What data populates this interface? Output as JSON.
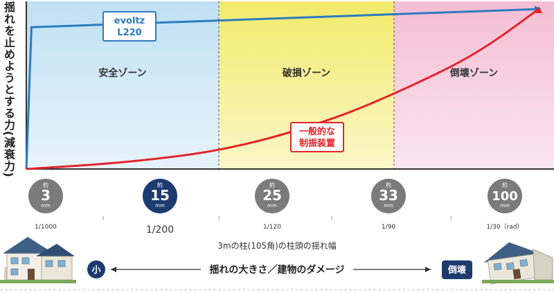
{
  "chart_data": {
    "type": "line",
    "ylabel": "揺れを止めようとする力(減衰力)",
    "zones": [
      {
        "label": "安全ゾーン",
        "color": "#cfe6f3"
      },
      {
        "label": "破損ゾーン",
        "color": "#f6ef8c"
      },
      {
        "label": "倒壊ゾーン",
        "color": "#f6cfdf"
      }
    ],
    "series": [
      {
        "name": "evoltz L220",
        "label_lines": [
          "evoltz",
          "L220"
        ],
        "color": "#2b7bc0",
        "points": [
          [
            0,
            0
          ],
          [
            1,
            86
          ],
          [
            100,
            97
          ]
        ]
      },
      {
        "name": "一般的な制振装置",
        "label_lines": [
          "一般的な",
          "制振装置"
        ],
        "color": "#e1242a",
        "points": [
          [
            0,
            0
          ],
          [
            20,
            4
          ],
          [
            40,
            12
          ],
          [
            60,
            30
          ],
          [
            75,
            50
          ],
          [
            88,
            70
          ],
          [
            100,
            97
          ]
        ]
      }
    ],
    "markers": [
      {
        "prefix": "約",
        "value": "3",
        "unit": "mm",
        "ratio": "1/1000",
        "highlight": false
      },
      {
        "prefix": "約",
        "value": "15",
        "unit": "mm",
        "ratio": "1/200",
        "highlight": true
      },
      {
        "prefix": "約",
        "value": "25",
        "unit": "mm",
        "ratio": "1/120",
        "highlight": false
      },
      {
        "prefix": "約",
        "value": "33",
        "unit": "mm",
        "ratio": "1/90",
        "highlight": false
      },
      {
        "prefix": "約",
        "value": "100",
        "unit": "mm",
        "ratio": "1/30（rad）",
        "highlight": false
      }
    ],
    "xlabel": "3mの柱(105角)の柱頭の揺れ幅",
    "scale": {
      "left_label": "小",
      "right_label": "倒壊",
      "caption": "揺れの大きさ／建物のダメージ"
    },
    "colors": {
      "navy": "#1d3b6f",
      "gray": "#7b7b7b",
      "axis": "#333333"
    }
  }
}
